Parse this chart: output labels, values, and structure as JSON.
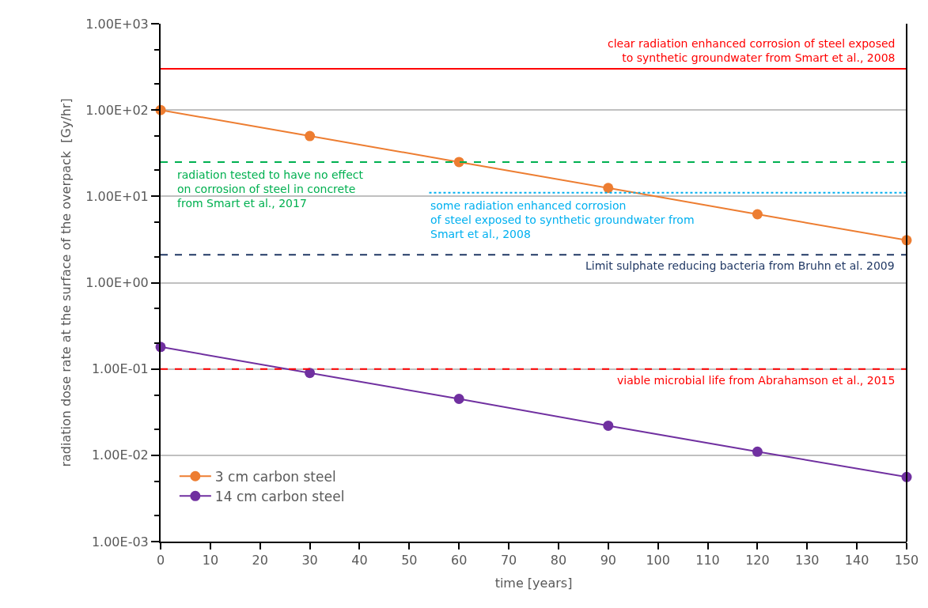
{
  "chart_data": {
    "type": "line",
    "xlabel": "time [years]",
    "ylabel": "radiation dose rate at the surface of the overpack  [Gy/hr]",
    "x": [
      0,
      30,
      60,
      90,
      120,
      150
    ],
    "series": [
      {
        "name": "3 cm carbon steel",
        "color": "#ed7d31",
        "values": [
          100,
          50,
          25,
          12.5,
          6.2,
          3.1
        ]
      },
      {
        "name": "14 cm carbon steel",
        "color": "#7030a0",
        "values": [
          0.18,
          0.09,
          0.045,
          0.022,
          0.011,
          0.0056
        ]
      }
    ],
    "log": "y",
    "marker": "circle",
    "line_style": "solid",
    "grid": "y",
    "legend": "bottom left",
    "xlim": [
      0,
      150
    ],
    "xticks": [
      0,
      10,
      20,
      30,
      40,
      50,
      60,
      70,
      80,
      90,
      100,
      110,
      120,
      130,
      140,
      150
    ],
    "ylim": [
      0.001,
      1000
    ],
    "yticks": [
      {
        "value": 0.001,
        "label": "1.00E-03"
      },
      {
        "value": 0.01,
        "label": "1.00E-02"
      },
      {
        "value": 0.1,
        "label": "1.00E-01"
      },
      {
        "value": 1,
        "label": "1.00E+00"
      },
      {
        "value": 10,
        "label": "1.00E+01"
      },
      {
        "value": 100,
        "label": "1.00E+02"
      },
      {
        "value": 1000,
        "label": "1.00E+03"
      }
    ],
    "ref_lines": [
      {
        "axis": "y",
        "value": 300,
        "label": "clear radiation enhanced corrosion of steel exposed\nto synthetic groundwater from Smart et al., 2008",
        "color": "#ff0000",
        "line_style": "solid"
      },
      {
        "axis": "y",
        "value": 25,
        "label": "radiation tested to have no effect\non corrosion of steel in concrete\nfrom Smart et al., 2017",
        "color": "#00b050",
        "line_style": "dashed"
      },
      {
        "axis": "y",
        "value": 11,
        "label": "some radiation enhanced corrosion\nof steel exposed to synthetic groundwater from\nSmart et al., 2008",
        "color": "#00b0f0",
        "line_style": "dotted"
      },
      {
        "axis": "y",
        "value": 2.1,
        "label": "Limit sulphate reducing bacteria from Bruhn et al. 2009",
        "color": "#203864",
        "line_style": "dashed"
      },
      {
        "axis": "y",
        "value": 0.1,
        "label": "viable microbial life from Abrahamson et al., 2015",
        "color": "#ff0000",
        "line_style": "dashed"
      }
    ]
  }
}
